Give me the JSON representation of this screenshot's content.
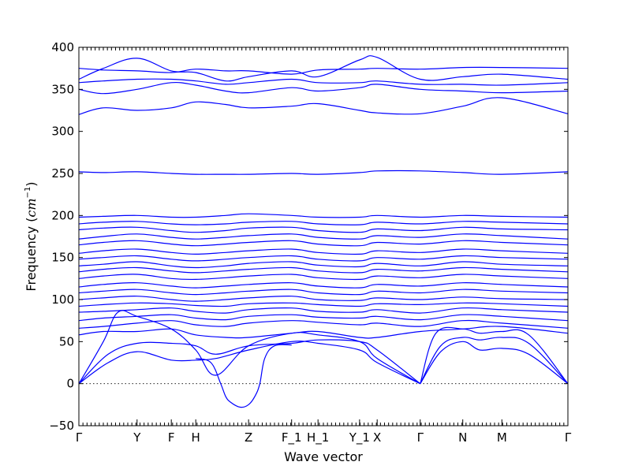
{
  "chart_data": {
    "type": "line",
    "title": "",
    "xlabel": "Wave vector",
    "ylabel_text": "Frequency (",
    "ylabel_unit_base": "cm",
    "ylabel_unit_exp": "−1",
    "ylabel_close": ")",
    "ylim": [
      -50,
      400
    ],
    "yticks": [
      -50,
      0,
      50,
      100,
      150,
      200,
      250,
      300,
      350,
      400
    ],
    "xlim": [
      0,
      1
    ],
    "grid": false,
    "xticks": [
      {
        "label": "Γ",
        "x": 0.0
      },
      {
        "label": "Y",
        "x": 0.119
      },
      {
        "label": "F",
        "x": 0.189
      },
      {
        "label": "H",
        "x": 0.239
      },
      {
        "label": "Z",
        "x": 0.347
      },
      {
        "label": "F_1",
        "x": 0.435
      },
      {
        "label": "H_1",
        "x": 0.489
      },
      {
        "label": "Y_1",
        "x": 0.574
      },
      {
        "label": "X",
        "x": 0.61
      },
      {
        "label": "Γ",
        "x": 0.698
      },
      {
        "label": "N",
        "x": 0.785
      },
      {
        "label": "M",
        "x": 0.865
      },
      {
        "label": "Γ",
        "x": 1.0
      }
    ],
    "series": [
      {
        "x": [
          0,
          0.06,
          0.119,
          0.189,
          0.239,
          0.28,
          0.347,
          0.435,
          0.489,
          0.574,
          0.61,
          0.698
        ],
        "values": [
          0,
          25,
          38,
          28,
          28,
          30,
          40,
          50,
          48,
          40,
          25,
          0
        ]
      },
      {
        "x": [
          0,
          0.06,
          0.119,
          0.189,
          0.239,
          0.28,
          0.347,
          0.435,
          0.489,
          0.574,
          0.61,
          0.698
        ],
        "values": [
          0,
          35,
          48,
          48,
          45,
          35,
          45,
          48,
          52,
          50,
          40,
          0
        ]
      },
      {
        "x": [
          0,
          0.05,
          0.08,
          0.119,
          0.189,
          0.239,
          0.28,
          0.347,
          0.435,
          0.489,
          0.574,
          0.61,
          0.698
        ],
        "values": [
          0,
          50,
          85,
          80,
          65,
          40,
          10,
          45,
          60,
          58,
          50,
          30,
          0
        ]
      },
      {
        "x": [
          0.239,
          0.27,
          0.29,
          0.3,
          0.31,
          0.33,
          0.347,
          0.36,
          0.37,
          0.38,
          0.4,
          0.435
        ],
        "values": [
          30,
          25,
          0,
          -15,
          -22,
          -28,
          -25,
          -15,
          0,
          30,
          45,
          46
        ]
      },
      {
        "x": [
          0.698,
          0.74,
          0.785,
          0.82,
          0.865,
          0.92,
          1.0
        ],
        "values": [
          0,
          38,
          50,
          40,
          42,
          35,
          0
        ]
      },
      {
        "x": [
          0.698,
          0.74,
          0.785,
          0.82,
          0.865,
          0.92,
          1.0
        ],
        "values": [
          0,
          45,
          55,
          52,
          55,
          48,
          0
        ]
      },
      {
        "x": [
          0.698,
          0.73,
          0.785,
          0.82,
          0.865,
          0.92,
          1.0
        ],
        "values": [
          0,
          60,
          65,
          60,
          62,
          58,
          0
        ]
      },
      {
        "x": [
          0,
          0.05,
          0.119,
          0.189,
          0.239,
          0.3,
          0.347,
          0.435,
          0.489,
          0.574,
          0.61,
          0.698,
          0.785,
          0.865,
          1.0
        ],
        "values": [
          58,
          62,
          62,
          65,
          58,
          55,
          55,
          60,
          62,
          55,
          55,
          62,
          65,
          68,
          60
        ]
      },
      {
        "x": [
          0,
          0.05,
          0.119,
          0.189,
          0.239,
          0.3,
          0.347,
          0.435,
          0.489,
          0.574,
          0.61,
          0.698,
          0.785,
          0.865,
          1.0
        ],
        "values": [
          66,
          68,
          72,
          75,
          70,
          68,
          72,
          75,
          73,
          70,
          72,
          68,
          75,
          72,
          66
        ]
      },
      {
        "x": [
          0,
          0.05,
          0.119,
          0.189,
          0.239,
          0.3,
          0.347,
          0.435,
          0.489,
          0.574,
          0.61,
          0.698,
          0.785,
          0.865,
          1.0
        ],
        "values": [
          75,
          78,
          80,
          82,
          78,
          76,
          80,
          82,
          79,
          78,
          80,
          76,
          82,
          80,
          75
        ]
      },
      {
        "x": [
          0,
          0.05,
          0.119,
          0.189,
          0.239,
          0.3,
          0.347,
          0.435,
          0.489,
          0.574,
          0.61,
          0.698,
          0.785,
          0.865,
          1.0
        ],
        "values": [
          85,
          86,
          88,
          90,
          86,
          84,
          88,
          90,
          86,
          85,
          88,
          84,
          90,
          88,
          85
        ]
      },
      {
        "x": [
          0,
          0.05,
          0.119,
          0.189,
          0.239,
          0.3,
          0.347,
          0.435,
          0.489,
          0.574,
          0.61,
          0.698,
          0.785,
          0.865,
          1.0
        ],
        "values": [
          92,
          94,
          96,
          95,
          93,
          92,
          95,
          96,
          94,
          92,
          95,
          94,
          96,
          95,
          92
        ]
      },
      {
        "x": [
          0,
          0.05,
          0.119,
          0.189,
          0.239,
          0.3,
          0.347,
          0.435,
          0.489,
          0.574,
          0.61,
          0.698,
          0.785,
          0.865,
          1.0
        ],
        "values": [
          100,
          102,
          104,
          100,
          98,
          100,
          102,
          104,
          100,
          99,
          102,
          100,
          103,
          101,
          100
        ]
      },
      {
        "x": [
          0,
          0.05,
          0.119,
          0.189,
          0.239,
          0.3,
          0.347,
          0.435,
          0.489,
          0.574,
          0.61,
          0.698,
          0.785,
          0.865,
          1.0
        ],
        "values": [
          108,
          110,
          112,
          108,
          106,
          108,
          110,
          112,
          108,
          106,
          110,
          108,
          112,
          110,
          108
        ]
      },
      {
        "x": [
          0,
          0.05,
          0.119,
          0.189,
          0.239,
          0.3,
          0.347,
          0.435,
          0.489,
          0.574,
          0.61,
          0.698,
          0.785,
          0.865,
          1.0
        ],
        "values": [
          115,
          118,
          120,
          116,
          114,
          116,
          118,
          120,
          116,
          114,
          118,
          116,
          120,
          118,
          115
        ]
      },
      {
        "x": [
          0,
          0.05,
          0.119,
          0.189,
          0.239,
          0.3,
          0.347,
          0.435,
          0.489,
          0.574,
          0.61,
          0.698,
          0.785,
          0.865,
          1.0
        ],
        "values": [
          125,
          128,
          130,
          125,
          124,
          126,
          128,
          130,
          126,
          124,
          128,
          126,
          130,
          128,
          125
        ]
      },
      {
        "x": [
          0,
          0.05,
          0.119,
          0.189,
          0.239,
          0.3,
          0.347,
          0.435,
          0.489,
          0.574,
          0.61,
          0.698,
          0.785,
          0.865,
          1.0
        ],
        "values": [
          133,
          136,
          138,
          134,
          132,
          134,
          136,
          138,
          134,
          132,
          136,
          134,
          138,
          136,
          133
        ]
      },
      {
        "x": [
          0,
          0.05,
          0.119,
          0.189,
          0.239,
          0.3,
          0.347,
          0.435,
          0.489,
          0.574,
          0.61,
          0.698,
          0.785,
          0.865,
          1.0
        ],
        "values": [
          140,
          142,
          145,
          140,
          138,
          140,
          143,
          145,
          141,
          139,
          143,
          140,
          145,
          142,
          140
        ]
      },
      {
        "x": [
          0,
          0.05,
          0.119,
          0.189,
          0.239,
          0.3,
          0.347,
          0.435,
          0.489,
          0.574,
          0.61,
          0.698,
          0.785,
          0.865,
          1.0
        ],
        "values": [
          148,
          150,
          152,
          148,
          146,
          148,
          150,
          152,
          148,
          146,
          150,
          148,
          152,
          150,
          148
        ]
      },
      {
        "x": [
          0,
          0.05,
          0.119,
          0.189,
          0.239,
          0.3,
          0.347,
          0.435,
          0.489,
          0.574,
          0.61,
          0.698,
          0.785,
          0.865,
          1.0
        ],
        "values": [
          155,
          158,
          160,
          156,
          154,
          156,
          158,
          160,
          156,
          154,
          158,
          156,
          160,
          158,
          155
        ]
      },
      {
        "x": [
          0,
          0.05,
          0.119,
          0.189,
          0.239,
          0.3,
          0.347,
          0.435,
          0.489,
          0.574,
          0.61,
          0.698,
          0.785,
          0.865,
          1.0
        ],
        "values": [
          165,
          168,
          170,
          166,
          164,
          166,
          168,
          170,
          166,
          164,
          168,
          166,
          170,
          168,
          165
        ]
      },
      {
        "x": [
          0,
          0.05,
          0.119,
          0.189,
          0.239,
          0.3,
          0.347,
          0.435,
          0.489,
          0.574,
          0.61,
          0.698,
          0.785,
          0.865,
          1.0
        ],
        "values": [
          172,
          175,
          178,
          174,
          172,
          174,
          176,
          178,
          174,
          172,
          176,
          174,
          178,
          176,
          172
        ]
      },
      {
        "x": [
          0,
          0.05,
          0.119,
          0.189,
          0.239,
          0.3,
          0.347,
          0.435,
          0.489,
          0.574,
          0.61,
          0.698,
          0.785,
          0.865,
          1.0
        ],
        "values": [
          183,
          185,
          186,
          182,
          180,
          182,
          185,
          186,
          182,
          180,
          184,
          182,
          186,
          184,
          183
        ]
      },
      {
        "x": [
          0,
          0.05,
          0.119,
          0.189,
          0.239,
          0.3,
          0.347,
          0.435,
          0.489,
          0.574,
          0.61,
          0.698,
          0.785,
          0.865,
          1.0
        ],
        "values": [
          190,
          192,
          193,
          190,
          189,
          190,
          192,
          193,
          190,
          189,
          192,
          190,
          193,
          192,
          190
        ]
      },
      {
        "x": [
          0,
          0.05,
          0.119,
          0.189,
          0.239,
          0.3,
          0.347,
          0.435,
          0.489,
          0.574,
          0.61,
          0.698,
          0.785,
          0.865,
          1.0
        ],
        "values": [
          198,
          199,
          200,
          198,
          198,
          200,
          202,
          200,
          198,
          198,
          200,
          198,
          200,
          199,
          198
        ]
      },
      {
        "x": [
          0,
          0.05,
          0.119,
          0.189,
          0.239,
          0.3,
          0.347,
          0.435,
          0.489,
          0.574,
          0.61,
          0.698,
          0.785,
          0.865,
          1.0
        ],
        "values": [
          252,
          251,
          252,
          250,
          249,
          249,
          249,
          250,
          249,
          251,
          253,
          253,
          251,
          249,
          252
        ]
      },
      {
        "x": [
          0,
          0.05,
          0.119,
          0.189,
          0.239,
          0.3,
          0.347,
          0.435,
          0.489,
          0.574,
          0.61,
          0.698,
          0.785,
          0.865,
          1.0
        ],
        "values": [
          320,
          328,
          325,
          328,
          335,
          332,
          328,
          330,
          333,
          325,
          322,
          321,
          330,
          340,
          321
        ]
      },
      {
        "x": [
          0,
          0.05,
          0.119,
          0.189,
          0.239,
          0.3,
          0.347,
          0.435,
          0.489,
          0.574,
          0.61,
          0.698,
          0.785,
          0.865,
          1.0
        ],
        "values": [
          350,
          345,
          350,
          358,
          355,
          348,
          346,
          352,
          348,
          352,
          356,
          350,
          348,
          346,
          348
        ]
      },
      {
        "x": [
          0,
          0.05,
          0.119,
          0.189,
          0.239,
          0.3,
          0.347,
          0.435,
          0.489,
          0.574,
          0.61,
          0.698,
          0.785,
          0.865,
          1.0
        ],
        "values": [
          358,
          360,
          362,
          362,
          360,
          356,
          358,
          362,
          358,
          358,
          360,
          356,
          356,
          355,
          358
        ]
      },
      {
        "x": [
          0,
          0.05,
          0.119,
          0.189,
          0.239,
          0.3,
          0.347,
          0.435,
          0.489,
          0.574,
          0.61,
          0.698,
          0.785,
          0.865,
          1.0
        ],
        "values": [
          362,
          375,
          387,
          372,
          370,
          360,
          365,
          372,
          365,
          385,
          388,
          362,
          365,
          368,
          362
        ]
      },
      {
        "x": [
          0,
          0.05,
          0.119,
          0.189,
          0.239,
          0.3,
          0.347,
          0.435,
          0.489,
          0.574,
          0.61,
          0.698,
          0.785,
          0.865,
          1.0
        ],
        "values": [
          375,
          373,
          372,
          370,
          374,
          372,
          372,
          368,
          373,
          374,
          375,
          374,
          376,
          376,
          375
        ]
      }
    ]
  }
}
